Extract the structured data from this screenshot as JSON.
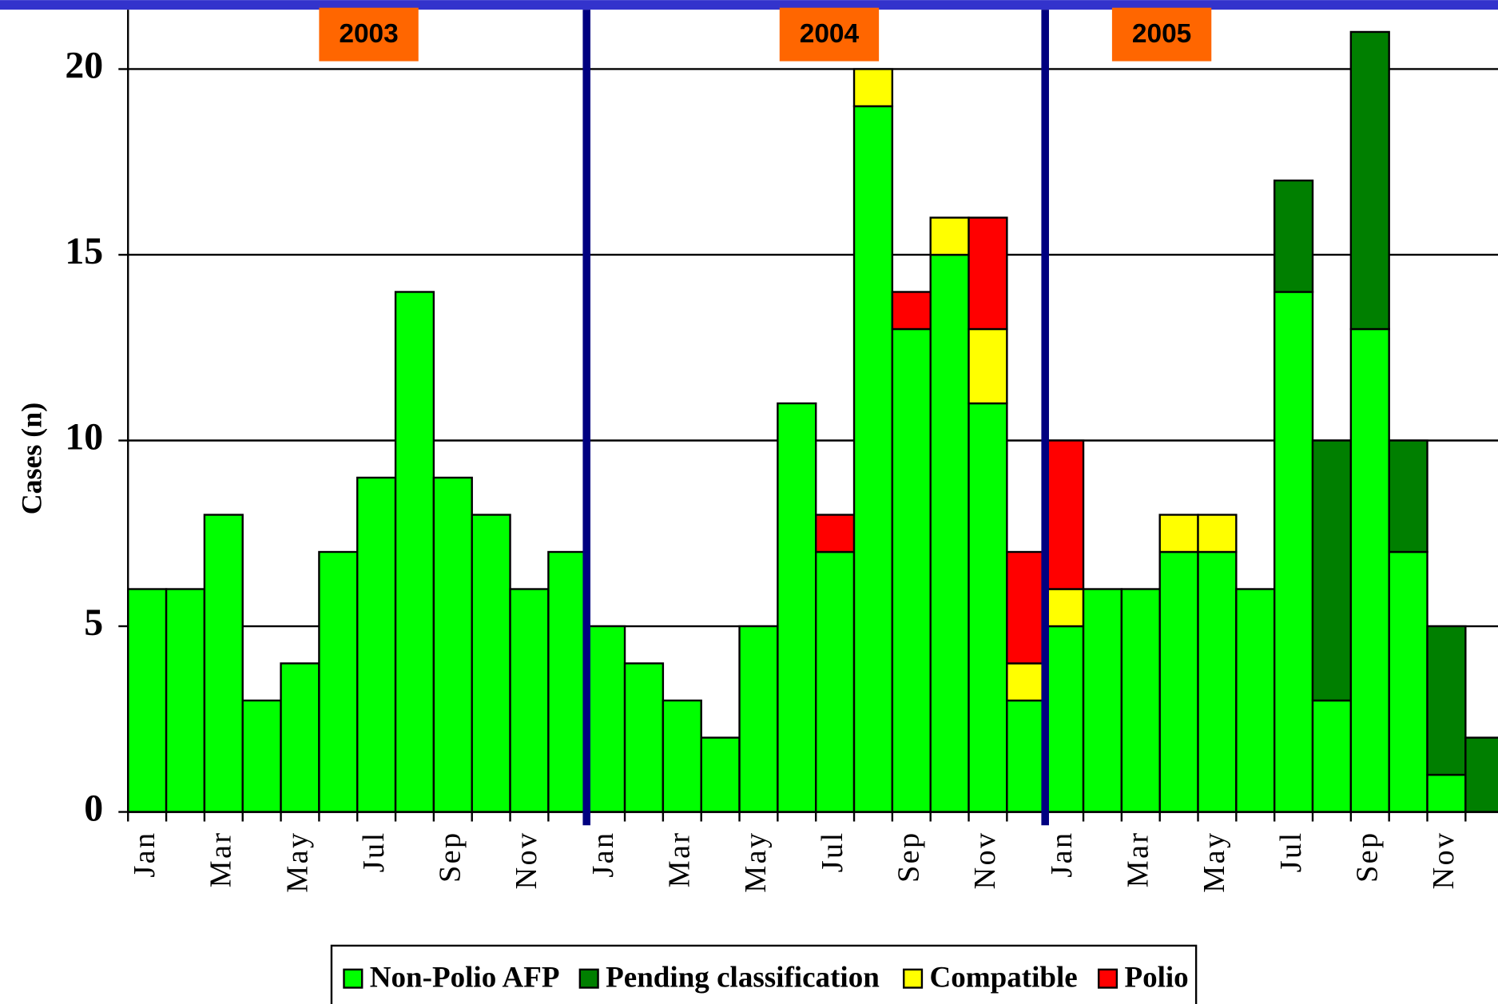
{
  "chart_data": {
    "type": "stacked_bar",
    "y_label": "Cases (n)",
    "year_labels": [
      "2003",
      "2004",
      "2005"
    ],
    "categories": [
      "Jan",
      null,
      "Mar",
      null,
      "May",
      null,
      "Jul",
      null,
      "Sep",
      null,
      "Nov",
      null,
      "Jan",
      null,
      "Mar",
      null,
      "May",
      null,
      "Jul",
      null,
      "Sep",
      null,
      "Nov",
      null,
      "Jan",
      null,
      "Mar",
      null,
      "May",
      null,
      "Jul",
      null,
      "Sep",
      null,
      "Nov",
      null
    ],
    "series": [
      {
        "name": "Non-Polio AFP",
        "color": "#00ff00",
        "values": [
          6,
          6,
          8,
          3,
          4,
          7,
          9,
          14,
          9,
          8,
          6,
          7,
          5,
          4,
          3,
          2,
          5,
          11,
          7,
          19,
          13,
          15,
          11,
          3,
          5,
          6,
          6,
          7,
          7,
          6,
          14,
          3,
          13,
          7,
          1,
          0
        ]
      },
      {
        "name": "Pending classification",
        "color": "#007f00",
        "values": [
          0,
          0,
          0,
          0,
          0,
          0,
          0,
          0,
          0,
          0,
          0,
          0,
          0,
          0,
          0,
          0,
          0,
          0,
          0,
          0,
          0,
          0,
          0,
          0,
          0,
          0,
          0,
          0,
          0,
          0,
          3,
          7,
          8,
          3,
          4,
          2
        ]
      },
      {
        "name": "Compatible",
        "color": "#ffff00",
        "values": [
          0,
          0,
          0,
          0,
          0,
          0,
          0,
          0,
          0,
          0,
          0,
          0,
          0,
          0,
          0,
          0,
          0,
          0,
          0,
          1,
          0,
          1,
          2,
          1,
          1,
          0,
          0,
          1,
          1,
          0,
          0,
          0,
          0,
          0,
          0,
          0
        ]
      },
      {
        "name": "Polio",
        "color": "#ff0000",
        "values": [
          0,
          0,
          0,
          0,
          0,
          0,
          0,
          0,
          0,
          0,
          0,
          0,
          0,
          0,
          0,
          0,
          0,
          0,
          1,
          0,
          1,
          0,
          3,
          3,
          4,
          0,
          0,
          0,
          0,
          0,
          0,
          0,
          0,
          0,
          0,
          0
        ]
      }
    ],
    "ylim": [
      0,
      21.6
    ],
    "yticks": [
      0,
      5,
      10,
      15,
      20
    ],
    "grid": true
  }
}
